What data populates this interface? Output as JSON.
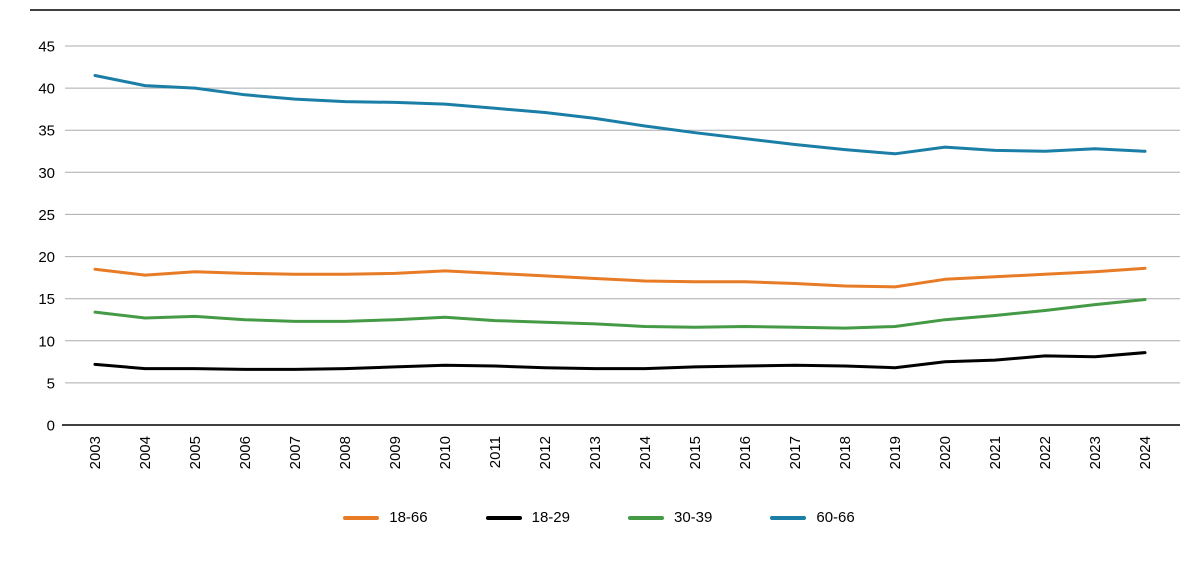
{
  "figure": {
    "background": "#ffffff",
    "gridline_color": "#ababab",
    "axis_color": "#000000"
  },
  "chart_data": {
    "type": "line",
    "x": [
      "2003",
      "2004",
      "2005",
      "2006",
      "2007",
      "2008",
      "2009",
      "2010",
      "2011",
      "2012",
      "2013",
      "2014",
      "2015",
      "2016",
      "2017",
      "2018",
      "2019",
      "2020",
      "2021",
      "2022",
      "2023",
      "2024"
    ],
    "series": [
      {
        "name": "18-66",
        "color": "#e87b25",
        "values": [
          18.5,
          17.8,
          18.2,
          18.0,
          17.9,
          17.9,
          18.0,
          18.3,
          18.0,
          17.7,
          17.4,
          17.1,
          17.0,
          17.0,
          16.8,
          16.5,
          16.4,
          17.3,
          17.6,
          17.9,
          18.2,
          18.6
        ]
      },
      {
        "name": "18-29",
        "color": "#000000",
        "values": [
          7.2,
          6.7,
          6.7,
          6.6,
          6.6,
          6.7,
          6.9,
          7.1,
          7.0,
          6.8,
          6.7,
          6.7,
          6.9,
          7.0,
          7.1,
          7.0,
          6.8,
          7.5,
          7.7,
          8.2,
          8.1,
          8.6
        ]
      },
      {
        "name": "30-39",
        "color": "#459a45",
        "values": [
          13.4,
          12.7,
          12.9,
          12.5,
          12.3,
          12.3,
          12.5,
          12.8,
          12.4,
          12.2,
          12.0,
          11.7,
          11.6,
          11.7,
          11.6,
          11.5,
          11.7,
          12.5,
          13.0,
          13.6,
          14.3,
          14.9
        ]
      },
      {
        "name": "60-66",
        "color": "#1a7ea6",
        "values": [
          41.5,
          40.3,
          40.0,
          39.2,
          38.7,
          38.4,
          38.3,
          38.1,
          37.6,
          37.1,
          36.4,
          35.5,
          34.7,
          34.0,
          33.3,
          32.7,
          32.2,
          33.0,
          32.6,
          32.5,
          32.8,
          32.5
        ]
      }
    ],
    "ylim": [
      0,
      45
    ],
    "ytick_step": 5,
    "grid": true,
    "legend_position": "bottom"
  }
}
